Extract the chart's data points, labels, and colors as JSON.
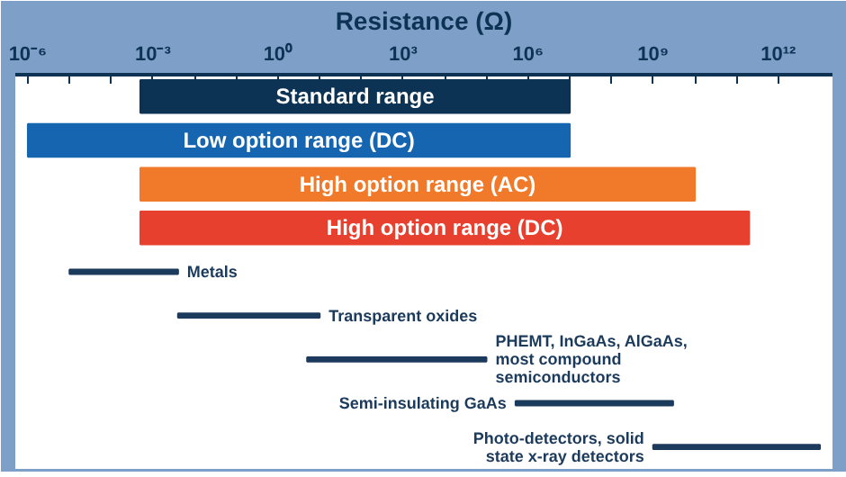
{
  "chart_data": {
    "type": "bar",
    "orientation": "horizontal",
    "log": "x",
    "xlabel": "Resistance (Ω)",
    "categories": [
      "Standard range",
      "Low option range (DC)",
      "High option range (AC)",
      "High option range (DC)",
      "Metals",
      "Transparent oxides",
      "PHEMT, InGaAs, AlGaAs, most compound semiconductors",
      "Semi-insulating GaAs",
      "Photo-detectors, solid state x-ray detectors"
    ],
    "series": [
      {
        "colors": [
          "#0d3354",
          "#1565b0",
          "#f07a2a",
          "#e8402f",
          null,
          null,
          null,
          null,
          null
        ],
        "base": [
          0.0005,
          1e-06,
          0.0005,
          0.0005,
          null,
          null,
          null,
          null,
          null
        ],
        "values": [
          10000000,
          10000000,
          10000000000,
          200000000000,
          null,
          null,
          null,
          null,
          null
        ]
      },
      {
        "color": "#1b3a5c",
        "base": [
          null,
          null,
          null,
          null,
          1e-05,
          0.004,
          5,
          500000,
          1000000000
        ],
        "values": [
          null,
          null,
          null,
          null,
          0.004,
          10,
          100000,
          3000000000,
          10000000000000
        ]
      }
    ],
    "xlim": [
      5e-07,
      20000000000000.0
    ],
    "xticks": [
      {
        "value": 1e-06,
        "label": "10⁻⁶"
      },
      {
        "value": 1e-05,
        "label": null
      },
      {
        "value": 0.0001,
        "label": null
      },
      {
        "value": 0.001,
        "label": "10⁻³"
      },
      {
        "value": 0.01,
        "label": null
      },
      {
        "value": 0.1,
        "label": null
      },
      {
        "value": 1,
        "label": "10⁰"
      },
      {
        "value": 10,
        "label": null
      },
      {
        "value": 100,
        "label": null
      },
      {
        "value": 1000,
        "label": "10³"
      },
      {
        "value": 10000,
        "label": null
      },
      {
        "value": 100000,
        "label": null
      },
      {
        "value": 1000000,
        "label": "10⁶"
      },
      {
        "value": 10000000,
        "label": null
      },
      {
        "value": 100000000,
        "label": null
      },
      {
        "value": 1000000000,
        "label": "10⁹"
      },
      {
        "value": 10000000000,
        "label": null
      },
      {
        "value": 100000000000,
        "label": null
      },
      {
        "value": 1000000000000,
        "label": "10¹²"
      }
    ]
  }
}
